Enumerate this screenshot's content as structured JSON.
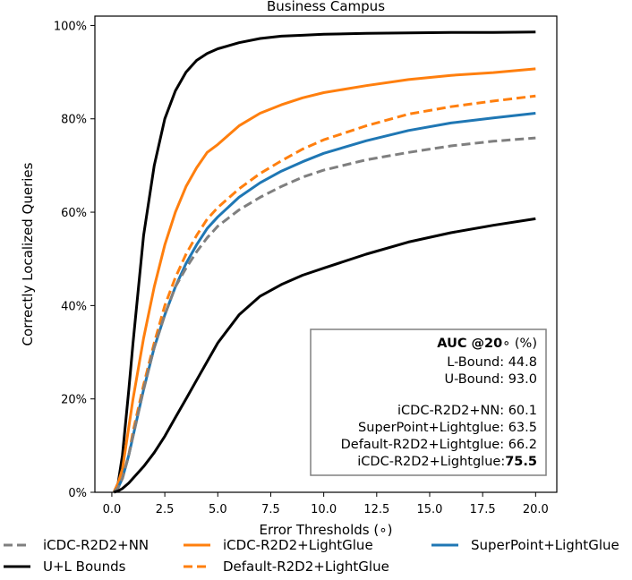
{
  "chart_data": {
    "type": "line",
    "title": "Business Campus",
    "xlabel": "Error Thresholds (∘)",
    "ylabel": "Correctly Localized Queries",
    "xlim": [
      -0.8,
      21.0
    ],
    "ylim": [
      0,
      1.02
    ],
    "xticks": [
      0.0,
      2.5,
      5.0,
      7.5,
      10.0,
      12.5,
      15.0,
      17.5,
      20.0
    ],
    "xtick_labels": [
      "0.0",
      "2.5",
      "5.0",
      "7.5",
      "10.0",
      "12.5",
      "15.0",
      "17.5",
      "20.0"
    ],
    "yticks": [
      0,
      0.2,
      0.4,
      0.6,
      0.8,
      1.0
    ],
    "ytick_labels": [
      "0%",
      "20%",
      "40%",
      "60%",
      "80%",
      "100%"
    ],
    "grid": false,
    "legend_position": "bottom",
    "legend": [
      {
        "label": "iCDC-R2D2+NN",
        "color": "#7f7f7f",
        "dash": "dashed"
      },
      {
        "label": "iCDC-R2D2+LightGlue",
        "color": "#ff7f0e",
        "dash": "solid"
      },
      {
        "label": "SuperPoint+LightGlue",
        "color": "#1f77b4",
        "dash": "solid"
      },
      {
        "label": "U+L Bounds",
        "color": "#000000",
        "dash": "solid"
      },
      {
        "label": "Default-R2D2+LightGlue",
        "color": "#ff7f0e",
        "dash": "dashed"
      }
    ],
    "series": [
      {
        "name": "U-Bound",
        "color": "#000000",
        "dash": "solid",
        "x": [
          0.1,
          0.3,
          0.5,
          0.8,
          1.0,
          1.5,
          2.0,
          2.5,
          3.0,
          3.5,
          4.0,
          4.5,
          5.0,
          6.0,
          7.0,
          8.0,
          9.0,
          10.0,
          12.0,
          14.0,
          16.0,
          18.0,
          20.0
        ],
        "y": [
          0.0,
          0.02,
          0.08,
          0.22,
          0.32,
          0.55,
          0.7,
          0.8,
          0.86,
          0.9,
          0.925,
          0.94,
          0.95,
          0.963,
          0.972,
          0.977,
          0.979,
          0.981,
          0.983,
          0.984,
          0.985,
          0.985,
          0.986
        ]
      },
      {
        "name": "iCDC-R2D2+LightGlue",
        "color": "#ff7f0e",
        "dash": "solid",
        "x": [
          0.1,
          0.3,
          0.5,
          0.8,
          1.0,
          1.5,
          2.0,
          2.5,
          3.0,
          3.5,
          4.0,
          4.5,
          5.0,
          6.0,
          7.0,
          8.0,
          9.0,
          10.0,
          12.0,
          14.0,
          16.0,
          18.0,
          20.0
        ],
        "y": [
          0.0,
          0.02,
          0.05,
          0.14,
          0.2,
          0.33,
          0.44,
          0.53,
          0.6,
          0.655,
          0.695,
          0.728,
          0.745,
          0.785,
          0.812,
          0.83,
          0.845,
          0.856,
          0.871,
          0.884,
          0.893,
          0.899,
          0.907
        ]
      },
      {
        "name": "Default-R2D2+LightGlue",
        "color": "#ff7f0e",
        "dash": "dashed",
        "x": [
          0.1,
          0.3,
          0.5,
          0.8,
          1.0,
          1.5,
          2.0,
          2.5,
          3.0,
          3.5,
          4.0,
          4.5,
          5.0,
          6.0,
          7.0,
          8.0,
          9.0,
          10.0,
          12.0,
          14.0,
          16.0,
          18.0,
          20.0
        ],
        "y": [
          0.0,
          0.01,
          0.03,
          0.08,
          0.13,
          0.23,
          0.32,
          0.4,
          0.46,
          0.51,
          0.55,
          0.585,
          0.61,
          0.65,
          0.683,
          0.71,
          0.735,
          0.755,
          0.785,
          0.81,
          0.826,
          0.838,
          0.849
        ]
      },
      {
        "name": "SuperPoint+LightGlue",
        "color": "#1f77b4",
        "dash": "solid",
        "x": [
          0.1,
          0.3,
          0.5,
          0.8,
          1.0,
          1.5,
          2.0,
          2.5,
          3.0,
          3.5,
          4.0,
          4.5,
          5.0,
          6.0,
          7.0,
          8.0,
          9.0,
          10.0,
          12.0,
          14.0,
          16.0,
          18.0,
          20.0
        ],
        "y": [
          0.0,
          0.01,
          0.03,
          0.08,
          0.12,
          0.22,
          0.31,
          0.38,
          0.44,
          0.49,
          0.53,
          0.565,
          0.59,
          0.632,
          0.663,
          0.688,
          0.708,
          0.726,
          0.753,
          0.775,
          0.791,
          0.802,
          0.812
        ]
      },
      {
        "name": "iCDC-R2D2+NN",
        "color": "#7f7f7f",
        "dash": "dashed",
        "x": [
          0.1,
          0.3,
          0.5,
          0.8,
          1.0,
          1.5,
          2.0,
          2.5,
          3.0,
          3.5,
          4.0,
          4.5,
          5.0,
          6.0,
          7.0,
          8.0,
          9.0,
          10.0,
          12.0,
          14.0,
          16.0,
          18.0,
          20.0
        ],
        "y": [
          0.0,
          0.01,
          0.03,
          0.08,
          0.12,
          0.22,
          0.31,
          0.38,
          0.44,
          0.48,
          0.515,
          0.545,
          0.57,
          0.605,
          0.632,
          0.655,
          0.675,
          0.69,
          0.712,
          0.728,
          0.742,
          0.752,
          0.759
        ]
      },
      {
        "name": "L-Bound",
        "color": "#000000",
        "dash": "solid",
        "x": [
          0.1,
          0.3,
          0.5,
          0.8,
          1.0,
          1.5,
          2.0,
          2.5,
          3.0,
          3.5,
          4.0,
          4.5,
          5.0,
          6.0,
          7.0,
          8.0,
          9.0,
          10.0,
          12.0,
          14.0,
          16.0,
          18.0,
          20.0
        ],
        "y": [
          0.0,
          0.003,
          0.008,
          0.02,
          0.03,
          0.055,
          0.085,
          0.12,
          0.16,
          0.2,
          0.24,
          0.28,
          0.32,
          0.38,
          0.42,
          0.445,
          0.465,
          0.48,
          0.51,
          0.536,
          0.556,
          0.572,
          0.586
        ]
      }
    ],
    "annotation": {
      "title_bold": "AUC @20",
      "title_rest": "∘ (%)",
      "lines": [
        {
          "label": "L-Bound:",
          "value": "44.8",
          "bold": false
        },
        {
          "label": "U-Bound:",
          "value": "93.0",
          "bold": false
        },
        {
          "label": "iCDC-R2D2+NN:",
          "value": "60.1",
          "bold": false
        },
        {
          "label": "SuperPoint+Lightglue:",
          "value": "63.5",
          "bold": false
        },
        {
          "label": "Default-R2D2+Lightglue:",
          "value": "66.2",
          "bold": false
        },
        {
          "label": "iCDC-R2D2+Lightglue:",
          "value": "75.5",
          "bold": true
        }
      ]
    }
  }
}
